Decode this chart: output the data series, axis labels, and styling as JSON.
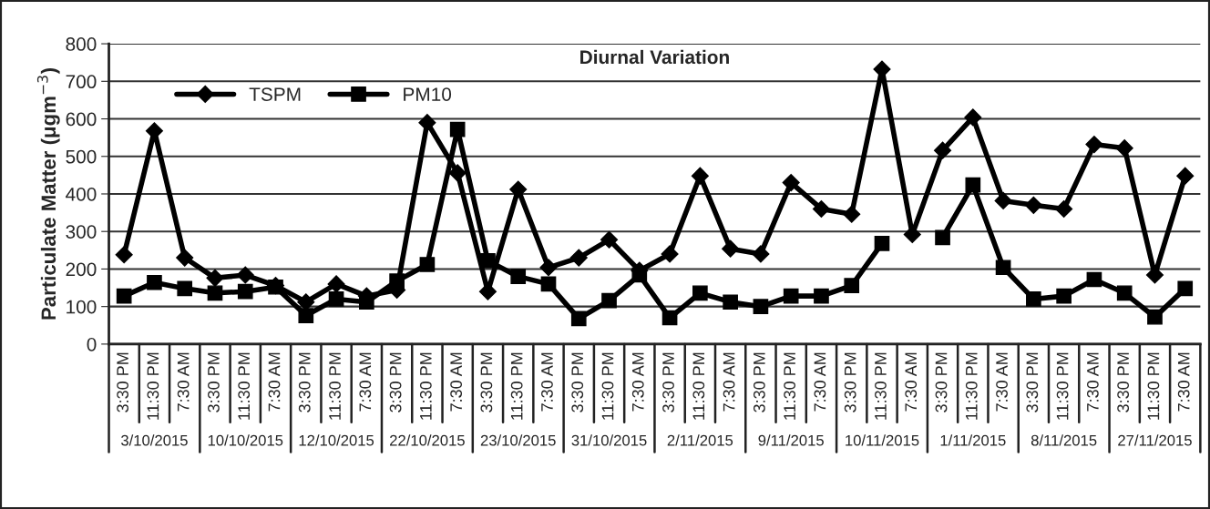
{
  "chart_data": {
    "type": "line",
    "title": "Diurnal Variation",
    "ylabel": "Particulate Matter (μgm$^{−3}$)",
    "categories": [
      "3:30 PM",
      "11:30 PM",
      "7:30 AM",
      "3:30 PM",
      "11:30 PM",
      "7:30 AM",
      "3:30 PM",
      "11:30 PM",
      "7:30 AM",
      "3:30 PM",
      "11:30 PM",
      "7:30 AM",
      "3:30 PM",
      "11:30 PM",
      "7:30 AM",
      "3:30 PM",
      "11:30 PM",
      "7:30 AM",
      "3:30 PM",
      "11:30 PM",
      "7:30 AM",
      "3:30 PM",
      "11:30 PM",
      "7:30 AM",
      "3:30 PM",
      "11:30 PM",
      "7:30 AM",
      "3:30 PM",
      "11:30 PM",
      "7:30 AM",
      "3:30 PM",
      "11:30 PM",
      "7:30 AM",
      "3:30 PM",
      "11:30 PM",
      "7:30 AM"
    ],
    "annotations": [
      "3/10/2015",
      "10/10/2015",
      "12/10/2015",
      "22/10/2015",
      "23/10/2015",
      "31/10/2015",
      "2/11/2015",
      "9/11/2015",
      "10/11/2015",
      "1/11/2015",
      "8/11/2015",
      "27/11/2015"
    ],
    "series": [
      {
        "name": "TSPM",
        "color": "#000000",
        "marker": "diamond",
        "values": [
          238,
          568,
          230,
          176,
          184,
          156,
          112,
          160,
          128,
          144,
          590,
          456,
          140,
          412,
          204,
          230,
          278,
          196,
          240,
          448,
          254,
          240,
          430,
          360,
          346,
          732,
          292,
          516,
          604,
          382,
          370,
          360,
          532,
          522,
          184,
          448
        ]
      },
      {
        "name": "PM10",
        "color": "#000000",
        "marker": "square",
        "values": [
          128,
          164,
          148,
          136,
          140,
          152,
          76,
          120,
          112,
          168,
          212,
          572,
          222,
          180,
          160,
          68,
          116,
          184,
          70,
          136,
          112,
          100,
          128,
          128,
          156,
          268,
          null,
          284,
          424,
          204,
          120,
          128,
          172,
          136,
          72,
          148
        ]
      }
    ],
    "ylim": [
      0,
      800
    ],
    "yticks": [
      0,
      100,
      200,
      300,
      400,
      500,
      600,
      700,
      800
    ],
    "grid": "y",
    "legend": "top left",
    "line_style": "solid"
  }
}
